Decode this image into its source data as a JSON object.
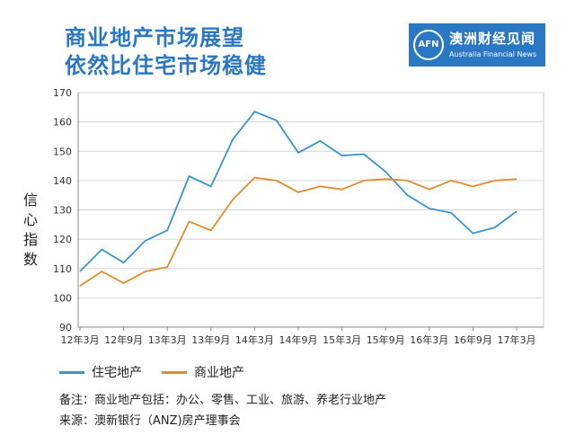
{
  "header": {
    "title_line1": "商业地产市场展望",
    "title_line2": "依然比住宅市场稳健"
  },
  "logo": {
    "mark": "AFN",
    "name_cn": "澳洲财经见闻",
    "name_en": "Australia Financial News",
    "color": "#2a78c4"
  },
  "chart_data": {
    "type": "line",
    "ylabel": "信心指数",
    "ylim": [
      90,
      170
    ],
    "yticks": [
      90,
      100,
      110,
      120,
      130,
      140,
      150,
      160,
      170
    ],
    "x_tick_labels": [
      "12年3月",
      "12年9月",
      "13年3月",
      "13年9月",
      "14年3月",
      "14年9月",
      "15年3月",
      "15年9月",
      "16年3月",
      "16年9月",
      "17年3月"
    ],
    "x": [
      "12年3月",
      "12年6月",
      "12年9月",
      "12年12月",
      "13年3月",
      "13年6月",
      "13年9月",
      "13年12月",
      "14年3月",
      "14年6月",
      "14年9月",
      "14年12月",
      "15年3月",
      "15年6月",
      "15年9月",
      "15年12月",
      "16年3月",
      "16年6月",
      "16年9月",
      "16年12月",
      "17年3月"
    ],
    "grid": true,
    "legend_position": "bottom-left",
    "series": [
      {
        "name": "住宅地产",
        "color": "#3a94cf",
        "values": [
          109,
          116.5,
          112,
          119.5,
          123,
          141.5,
          138,
          154,
          163.5,
          160.5,
          149.5,
          153.5,
          148.5,
          149,
          143,
          135,
          130.5,
          129,
          122,
          124,
          129.5
        ]
      },
      {
        "name": "商业地产",
        "color": "#e48a2a",
        "values": [
          104,
          109,
          105,
          109,
          110.5,
          126,
          123,
          133.5,
          141,
          140,
          136,
          138,
          137,
          140,
          140.5,
          140,
          137,
          140,
          138,
          140,
          140.5
        ]
      }
    ]
  },
  "notes": {
    "line1": "备注：商业地产包括：办公、零售、工业、旅游、养老行业地产",
    "line2": "来源：澳新银行（ANZ)房产理事会"
  }
}
